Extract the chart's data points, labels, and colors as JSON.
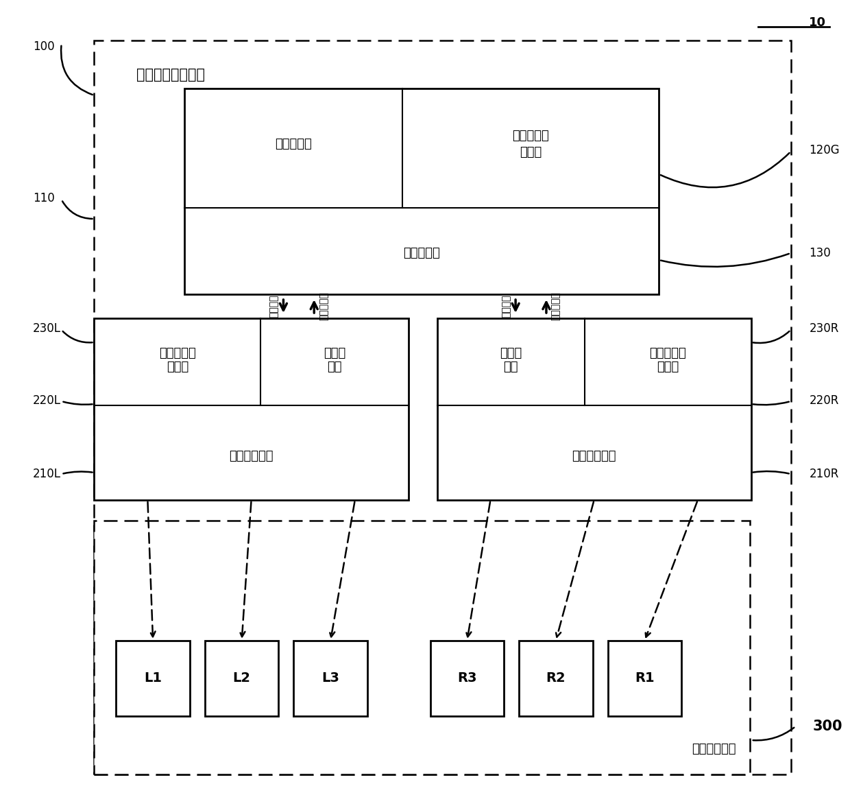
{
  "bg_color": "#ffffff",
  "figure_size": [
    12.4,
    11.59
  ],
  "dpi": 100,
  "label_10": "10",
  "label_100": "100",
  "label_110": "110",
  "label_120G": "120G",
  "label_130": "130",
  "label_230L": "230L",
  "label_220L": "220L",
  "label_210L": "210L",
  "label_230R": "230R",
  "label_220R": "220R",
  "label_210R": "210R",
  "label_300": "300",
  "title_device": "人体失衡检测装置",
  "label_main_ctrl": "主控制单元",
  "label_accel_sensor": "重心加速度\n传感器",
  "label_main_comm": "主通信单元",
  "label_left_accel": "左脚加速度\n传感器",
  "label_left_comm": "左通信\n单元",
  "label_left_ctrl": "左脚控制单元",
  "label_right_comm": "右通信\n单元",
  "label_right_accel": "右脚加速度\n传感器",
  "label_right_ctrl": "右脚控制单元",
  "label_behavior": "行为引导单元",
  "arrow_down": "分拨信号",
  "arrow_up": "加速度信号",
  "buttons": [
    "L1",
    "L2",
    "L3",
    "R3",
    "R2",
    "R1"
  ]
}
